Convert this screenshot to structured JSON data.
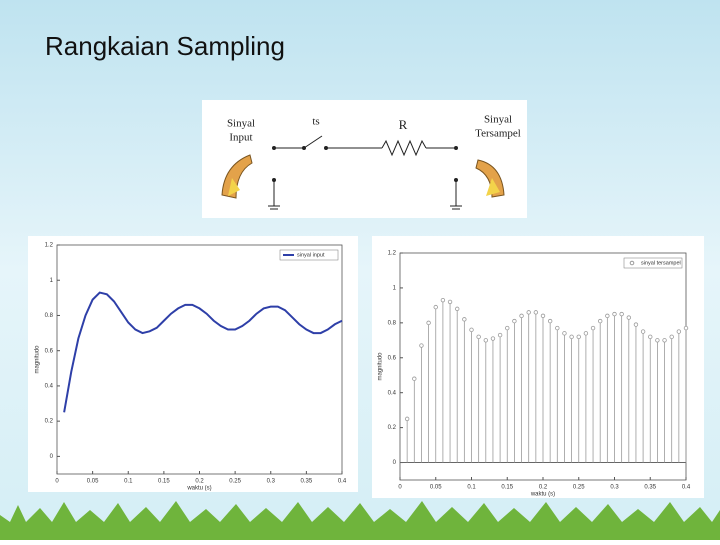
{
  "title": "Rangkaian Sampling",
  "diagram": {
    "input_label": [
      "Sinyal",
      "Input"
    ],
    "switch_label": "ts",
    "resistor_label": "R",
    "output_label": [
      "Sinyal",
      "Tersampel"
    ]
  },
  "chart_data": [
    {
      "type": "line",
      "xlabel": "waktu (s)",
      "ylabel": "magnitudo",
      "x": [
        0.01,
        0.02,
        0.03,
        0.04,
        0.05,
        0.06,
        0.07,
        0.08,
        0.09,
        0.1,
        0.11,
        0.12,
        0.13,
        0.14,
        0.15,
        0.16,
        0.17,
        0.18,
        0.19,
        0.2,
        0.21,
        0.22,
        0.23,
        0.24,
        0.25,
        0.26,
        0.27,
        0.28,
        0.29,
        0.3,
        0.31,
        0.32,
        0.33,
        0.34,
        0.35,
        0.36,
        0.37,
        0.38,
        0.39,
        0.4
      ],
      "series": [
        {
          "name": "sinyal input",
          "color": "#2e3fa8",
          "values": [
            0.25,
            0.48,
            0.67,
            0.8,
            0.89,
            0.93,
            0.92,
            0.88,
            0.82,
            0.76,
            0.72,
            0.7,
            0.71,
            0.73,
            0.77,
            0.81,
            0.84,
            0.86,
            0.86,
            0.84,
            0.81,
            0.77,
            0.74,
            0.72,
            0.72,
            0.74,
            0.77,
            0.81,
            0.84,
            0.85,
            0.85,
            0.83,
            0.79,
            0.75,
            0.72,
            0.7,
            0.7,
            0.72,
            0.75,
            0.77
          ]
        }
      ],
      "xlim": [
        0,
        0.4
      ],
      "ylim": [
        -0.1,
        1.2
      ],
      "xticks": [
        0,
        0.05,
        0.1,
        0.15,
        0.2,
        0.25,
        0.3,
        0.35,
        0.4
      ],
      "yticks": [
        0,
        0.2,
        0.4,
        0.6,
        0.8,
        1,
        1.2
      ]
    },
    {
      "type": "stem",
      "xlabel": "waktu (s)",
      "ylabel": "magnitudo",
      "x": [
        0.01,
        0.02,
        0.03,
        0.04,
        0.05,
        0.06,
        0.07,
        0.08,
        0.09,
        0.1,
        0.11,
        0.12,
        0.13,
        0.14,
        0.15,
        0.16,
        0.17,
        0.18,
        0.19,
        0.2,
        0.21,
        0.22,
        0.23,
        0.24,
        0.25,
        0.26,
        0.27,
        0.28,
        0.29,
        0.3,
        0.31,
        0.32,
        0.33,
        0.34,
        0.35,
        0.36,
        0.37,
        0.38,
        0.39,
        0.4
      ],
      "series": [
        {
          "name": "sinyal tersampel",
          "color": "#9a9a9a",
          "values": [
            0.25,
            0.48,
            0.67,
            0.8,
            0.89,
            0.93,
            0.92,
            0.88,
            0.82,
            0.76,
            0.72,
            0.7,
            0.71,
            0.73,
            0.77,
            0.81,
            0.84,
            0.86,
            0.86,
            0.84,
            0.81,
            0.77,
            0.74,
            0.72,
            0.72,
            0.74,
            0.77,
            0.81,
            0.84,
            0.85,
            0.85,
            0.83,
            0.79,
            0.75,
            0.72,
            0.7,
            0.7,
            0.72,
            0.75,
            0.77
          ]
        }
      ],
      "xlim": [
        0,
        0.4
      ],
      "ylim": [
        -0.1,
        1.2
      ],
      "xticks": [
        0,
        0.05,
        0.1,
        0.15,
        0.2,
        0.25,
        0.3,
        0.35,
        0.4
      ],
      "yticks": [
        0,
        0.2,
        0.4,
        0.6,
        0.8,
        1,
        1.2
      ]
    }
  ]
}
